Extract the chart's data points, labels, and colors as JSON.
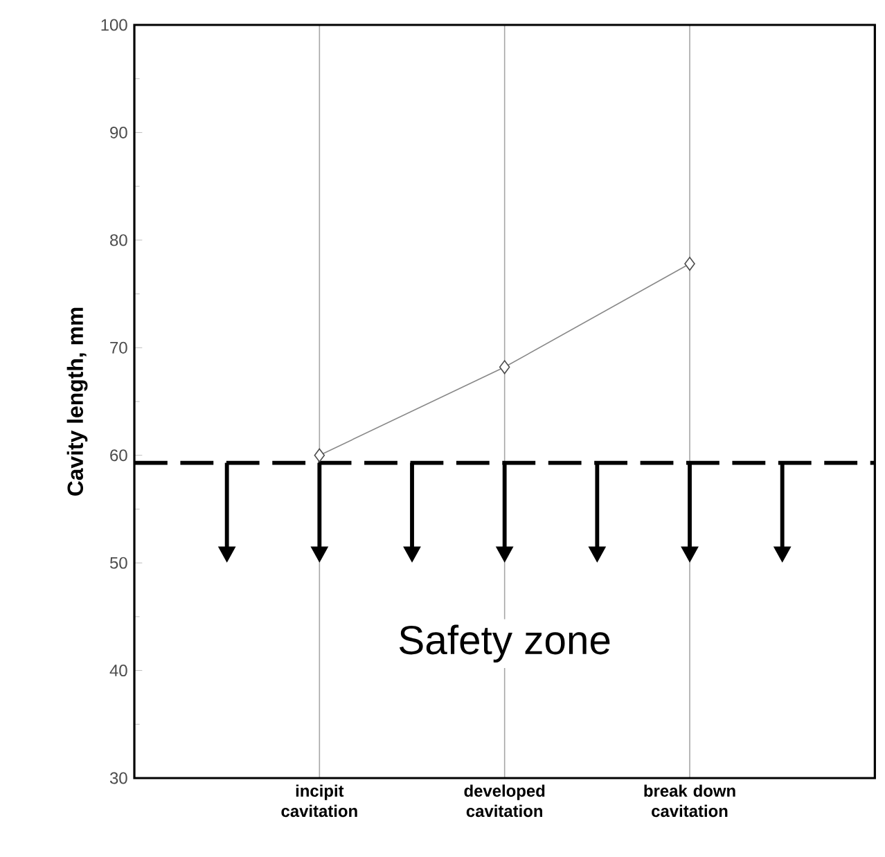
{
  "chart_data": {
    "type": "line",
    "categories": [
      null,
      "incipit cavitation",
      "developed cavitation",
      "break down cavitation",
      null
    ],
    "values": [
      null,
      60,
      68.2,
      77.8,
      null
    ],
    "color": "#888888",
    "marker": "diamond",
    "ylabel": "Cavity length,  mm",
    "ylim": [
      30,
      100
    ],
    "yticks": [
      30,
      40,
      50,
      60,
      70,
      80,
      90,
      100
    ],
    "grid": "x",
    "ref_lines": [
      {
        "axis": "y",
        "value": 59.3,
        "label": "Safety zone",
        "line_style": "dashed",
        "color": "#000000"
      }
    ]
  }
}
